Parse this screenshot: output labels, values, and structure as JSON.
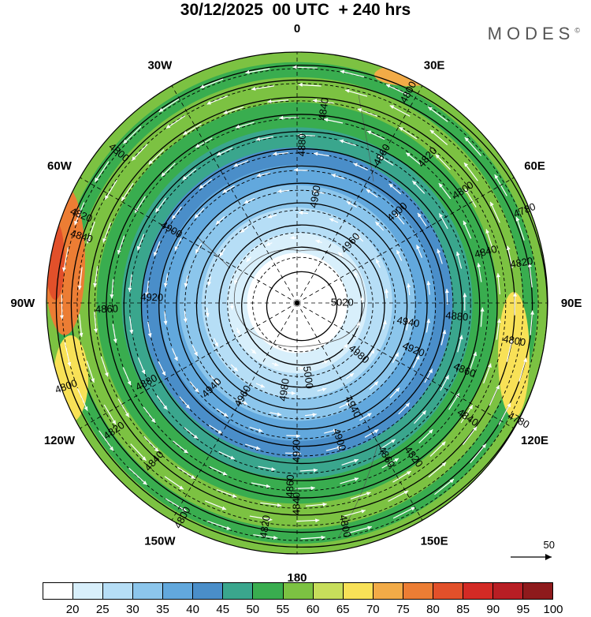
{
  "title": "30/12/2025  00 UTC  + 240 hrs",
  "brand": "MODES",
  "brand_mark": "©",
  "longitude_labels": [
    {
      "text": "0",
      "lon": 0
    },
    {
      "text": "30E",
      "lon": 30
    },
    {
      "text": "60E",
      "lon": 60
    },
    {
      "text": "90E",
      "lon": 90
    },
    {
      "text": "120E",
      "lon": 120
    },
    {
      "text": "150E",
      "lon": 150
    },
    {
      "text": "180",
      "lon": 180
    },
    {
      "text": "150W",
      "lon": -150
    },
    {
      "text": "120W",
      "lon": -120
    },
    {
      "text": "90W",
      "lon": -90
    },
    {
      "text": "60W",
      "lon": -60
    },
    {
      "text": "30W",
      "lon": -30
    }
  ],
  "contour_labels": [
    {
      "text": "4800",
      "lon": 28,
      "r": 0.95
    },
    {
      "text": "4840",
      "lon": 8,
      "r": 0.78
    },
    {
      "text": "4820",
      "lon": 42,
      "r": 0.78
    },
    {
      "text": "4860",
      "lon": 30,
      "r": 0.68
    },
    {
      "text": "4880",
      "lon": 2,
      "r": 0.63
    },
    {
      "text": "4800",
      "lon": 56,
      "r": 0.8
    },
    {
      "text": "4780",
      "lon": 68,
      "r": 0.98
    },
    {
      "text": "4840",
      "lon": 75,
      "r": 0.78
    },
    {
      "text": "4820",
      "lon": 80,
      "r": 0.91
    },
    {
      "text": "4960",
      "lon": 10,
      "r": 0.43
    },
    {
      "text": "4900",
      "lon": 48,
      "r": 0.54
    },
    {
      "text": "4960",
      "lon": 42,
      "r": 0.32
    },
    {
      "text": "5020",
      "lon": 90,
      "r": 0.18
    },
    {
      "text": "4940",
      "lon": 100,
      "r": 0.45
    },
    {
      "text": "4880",
      "lon": 95,
      "r": 0.64
    },
    {
      "text": "4920",
      "lon": 112,
      "r": 0.5
    },
    {
      "text": "4980",
      "lon": 130,
      "r": 0.32
    },
    {
      "text": "4860",
      "lon": 112,
      "r": 0.72
    },
    {
      "text": "4800",
      "lon": 100,
      "r": 0.88
    },
    {
      "text": "4780",
      "lon": 118,
      "r": 1.0
    },
    {
      "text": "4840",
      "lon": 124,
      "r": 0.82
    },
    {
      "text": "4940",
      "lon": 152,
      "r": 0.47
    },
    {
      "text": "5000",
      "lon": 172,
      "r": 0.3
    },
    {
      "text": "4900",
      "lon": 163,
      "r": 0.57
    },
    {
      "text": "4920",
      "lon": 180,
      "r": 0.59
    },
    {
      "text": "4860",
      "lon": 150,
      "r": 0.71
    },
    {
      "text": "4820",
      "lon": 143,
      "r": 0.77
    },
    {
      "text": "4840",
      "lon": 180,
      "r": 0.8
    },
    {
      "text": "4800",
      "lon": 168,
      "r": 0.91
    },
    {
      "text": "4820",
      "lon": -172,
      "r": 0.9
    },
    {
      "text": "4860",
      "lon": -178,
      "r": 0.73
    },
    {
      "text": "4980",
      "lon": -172,
      "r": 0.35
    },
    {
      "text": "4960",
      "lon": -150,
      "r": 0.43
    },
    {
      "text": "4940",
      "lon": -135,
      "r": 0.48
    },
    {
      "text": "4880",
      "lon": -118,
      "r": 0.68
    },
    {
      "text": "4800",
      "lon": -152,
      "r": 0.97
    },
    {
      "text": "4840",
      "lon": -138,
      "r": 0.85
    },
    {
      "text": "4820",
      "lon": -125,
      "r": 0.89
    },
    {
      "text": "4800",
      "lon": -110,
      "r": 0.98
    },
    {
      "text": "4920",
      "lon": -88,
      "r": 0.58
    },
    {
      "text": "4860",
      "lon": -92,
      "r": 0.76
    },
    {
      "text": "4840",
      "lon": -73,
      "r": 0.9
    },
    {
      "text": "4820",
      "lon": -68,
      "r": 0.93
    },
    {
      "text": "4900",
      "lon": -60,
      "r": 0.58
    },
    {
      "text": "4800",
      "lon": -50,
      "r": 0.93
    }
  ],
  "reference_vector": {
    "value": "50"
  },
  "colorbar": {
    "ticks": [
      "20",
      "25",
      "30",
      "35",
      "40",
      "45",
      "50",
      "55",
      "60",
      "65",
      "70",
      "75",
      "80",
      "85",
      "90",
      "95",
      "100"
    ],
    "colors": [
      "#ffffff",
      "#d8effb",
      "#b6def6",
      "#8cc6ec",
      "#62a8dd",
      "#4a8ec9",
      "#3aa68d",
      "#39ad4f",
      "#7cc242",
      "#c7de5b",
      "#f8e157",
      "#f2ab47",
      "#ec7d34",
      "#e2502a",
      "#d32a25",
      "#b81e24",
      "#8e1a1c"
    ]
  }
}
